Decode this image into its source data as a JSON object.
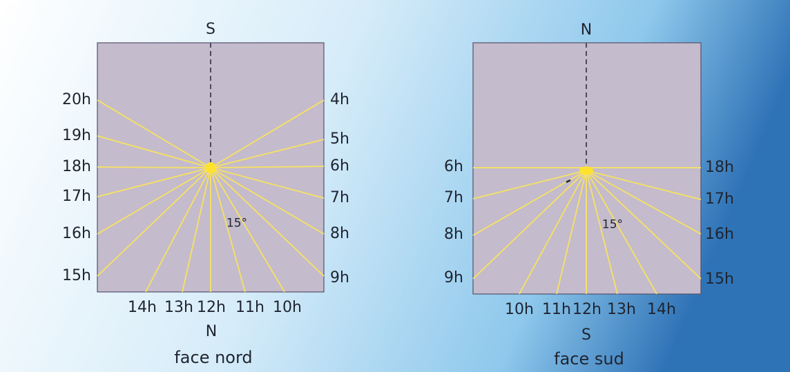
{
  "colors": {
    "face_fill": "#c4bbcc",
    "ray_color": "#f3df6a",
    "sun_color": "#ffe22e",
    "text_color": "#1f2430"
  },
  "panels": [
    {
      "top_letter": "S",
      "bottom_letter": "N",
      "caption": "face nord",
      "angle_label": "15°",
      "left_hours": [
        "20h",
        "19h",
        "18h",
        "17h",
        "16h",
        "15h"
      ],
      "right_hours": [
        "4h",
        "5h",
        "6h",
        "7h",
        "8h",
        "9h"
      ],
      "bottom_hours": [
        "14h",
        "13h",
        "12h",
        "11h",
        "10h"
      ]
    },
    {
      "top_letter": "N",
      "bottom_letter": "S",
      "caption": "face sud",
      "angle_label": "15°",
      "left_hours": [
        "6h",
        "7h",
        "8h",
        "9h"
      ],
      "right_hours": [
        "18h",
        "17h",
        "16h",
        "15h"
      ],
      "bottom_hours": [
        "10h",
        "11h",
        "12h",
        "13h",
        "14h"
      ]
    }
  ]
}
